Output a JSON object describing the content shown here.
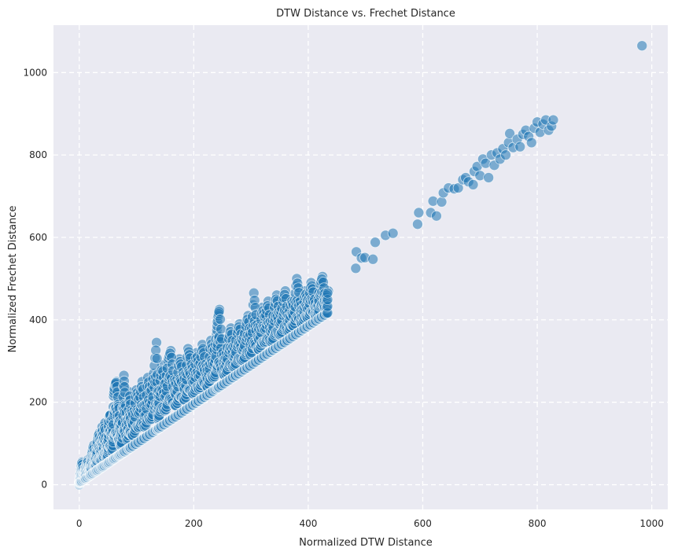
{
  "chart_data": {
    "type": "scatter",
    "title": "DTW Distance vs. Frechet Distance",
    "xlabel": "Normalized DTW Distance",
    "ylabel": "Normalized Frechet Distance",
    "xlim": [
      -45,
      1028
    ],
    "ylim": [
      -60,
      1115
    ],
    "xticks": [
      0,
      200,
      400,
      600,
      800,
      1000
    ],
    "yticks": [
      0,
      200,
      400,
      600,
      800,
      1000
    ],
    "grid": true,
    "grid_style": "dashed",
    "colors": {
      "plot_background": "#eaeaf2",
      "grid": "#ffffff",
      "marker_fill": "#1f77b4",
      "marker_edge": "#ffffff"
    },
    "marker_alpha": 0.55,
    "series": [
      {
        "name": "",
        "points": [
          [
            0,
            0
          ],
          [
            1,
            8
          ],
          [
            2,
            18
          ],
          [
            3,
            42
          ],
          [
            5,
            55
          ],
          [
            8,
            30
          ],
          [
            10,
            35
          ],
          [
            12,
            45
          ],
          [
            15,
            60
          ],
          [
            18,
            40
          ],
          [
            20,
            50
          ],
          [
            22,
            75
          ],
          [
            25,
            95
          ],
          [
            28,
            65
          ],
          [
            30,
            85
          ],
          [
            32,
            110
          ],
          [
            35,
            125
          ],
          [
            38,
            90
          ],
          [
            40,
            140
          ],
          [
            42,
            100
          ],
          [
            45,
            150
          ],
          [
            48,
            80
          ],
          [
            50,
            120
          ],
          [
            52,
            165
          ],
          [
            55,
            170
          ],
          [
            58,
            110
          ],
          [
            60,
            215
          ],
          [
            62,
            240
          ],
          [
            65,
            250
          ],
          [
            68,
            200
          ],
          [
            70,
            180
          ],
          [
            72,
            130
          ],
          [
            75,
            160
          ],
          [
            78,
            265
          ],
          [
            80,
            210
          ],
          [
            85,
            140
          ],
          [
            88,
            225
          ],
          [
            90,
            185
          ],
          [
            95,
            165
          ],
          [
            100,
            230
          ],
          [
            105,
            200
          ],
          [
            110,
            250
          ],
          [
            115,
            175
          ],
          [
            120,
            260
          ],
          [
            125,
            215
          ],
          [
            130,
            270
          ],
          [
            135,
            345
          ],
          [
            138,
            190
          ],
          [
            140,
            240
          ],
          [
            145,
            290
          ],
          [
            150,
            230
          ],
          [
            155,
            300
          ],
          [
            160,
            325
          ],
          [
            165,
            260
          ],
          [
            170,
            240
          ],
          [
            175,
            305
          ],
          [
            180,
            280
          ],
          [
            185,
            250
          ],
          [
            190,
            330
          ],
          [
            195,
            300
          ],
          [
            200,
            265
          ],
          [
            205,
            320
          ],
          [
            210,
            280
          ],
          [
            215,
            340
          ],
          [
            220,
            300
          ],
          [
            225,
            270
          ],
          [
            230,
            350
          ],
          [
            235,
            315
          ],
          [
            240,
            365
          ],
          [
            242,
            405
          ],
          [
            245,
            425
          ],
          [
            250,
            330
          ],
          [
            255,
            295
          ],
          [
            260,
            345
          ],
          [
            265,
            380
          ],
          [
            270,
            320
          ],
          [
            275,
            360
          ],
          [
            280,
            390
          ],
          [
            285,
            340
          ],
          [
            290,
            375
          ],
          [
            295,
            410
          ],
          [
            300,
            350
          ],
          [
            305,
            465
          ],
          [
            310,
            395
          ],
          [
            315,
            370
          ],
          [
            320,
            430
          ],
          [
            325,
            400
          ],
          [
            330,
            445
          ],
          [
            335,
            380
          ],
          [
            340,
            420
          ],
          [
            345,
            460
          ],
          [
            350,
            405
          ],
          [
            355,
            435
          ],
          [
            360,
            470
          ],
          [
            365,
            395
          ],
          [
            370,
            450
          ],
          [
            375,
            430
          ],
          [
            380,
            500
          ],
          [
            385,
            455
          ],
          [
            390,
            415
          ],
          [
            395,
            470
          ],
          [
            400,
            440
          ],
          [
            405,
            490
          ],
          [
            410,
            460
          ],
          [
            415,
            420
          ],
          [
            420,
            480
          ],
          [
            425,
            505
          ],
          [
            430,
            450
          ],
          [
            435,
            470
          ],
          [
            483,
            525
          ],
          [
            484,
            565
          ],
          [
            493,
            550
          ],
          [
            499,
            551
          ],
          [
            513,
            547
          ],
          [
            517,
            588
          ],
          [
            535,
            605
          ],
          [
            548,
            610
          ],
          [
            591,
            632
          ],
          [
            593,
            660
          ],
          [
            614,
            660
          ],
          [
            618,
            688
          ],
          [
            624,
            652
          ],
          [
            633,
            686
          ],
          [
            636,
            708
          ],
          [
            645,
            720
          ],
          [
            655,
            718
          ],
          [
            662,
            720
          ],
          [
            670,
            740
          ],
          [
            675,
            745
          ],
          [
            680,
            735
          ],
          [
            688,
            728
          ],
          [
            690,
            760
          ],
          [
            695,
            772
          ],
          [
            700,
            750
          ],
          [
            705,
            790
          ],
          [
            710,
            780
          ],
          [
            715,
            745
          ],
          [
            720,
            800
          ],
          [
            725,
            775
          ],
          [
            730,
            805
          ],
          [
            735,
            790
          ],
          [
            740,
            815
          ],
          [
            745,
            800
          ],
          [
            750,
            830
          ],
          [
            752,
            852
          ],
          [
            758,
            818
          ],
          [
            765,
            838
          ],
          [
            770,
            820
          ],
          [
            775,
            850
          ],
          [
            780,
            860
          ],
          [
            785,
            845
          ],
          [
            790,
            830
          ],
          [
            795,
            865
          ],
          [
            800,
            880
          ],
          [
            805,
            855
          ],
          [
            810,
            875
          ],
          [
            815,
            885
          ],
          [
            820,
            860
          ],
          [
            825,
            870
          ],
          [
            828,
            885
          ],
          [
            983,
            1065
          ]
        ]
      }
    ]
  }
}
